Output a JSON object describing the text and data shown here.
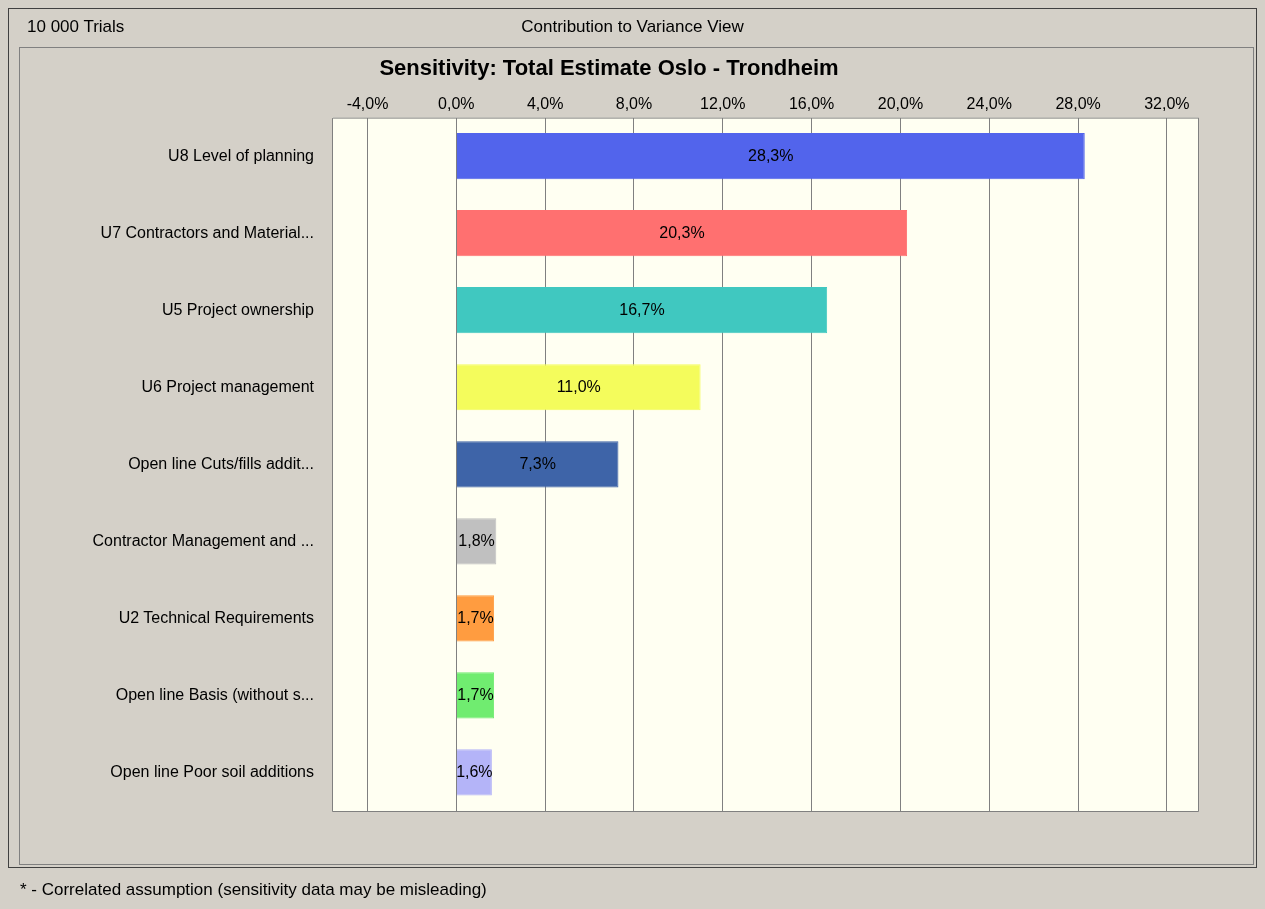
{
  "chart_data": {
    "type": "bar",
    "orientation": "horizontal",
    "title": "Sensitivity: Total Estimate Oslo - Trondheim",
    "subtitle": "Contribution to Variance View",
    "annotations": [
      "10 000 Trials",
      "* - Correlated assumption (sensitivity data may be misleading)"
    ],
    "categories": [
      "U8 Level of planning",
      "U7 Contractors and Material...",
      "U5 Project ownership",
      "U6 Project management",
      "Open line Cuts/fills addit...",
      "Contractor Management and ...",
      "U2 Technical Requirements",
      "Open line Basis (without s...",
      "Open line Poor soil additions"
    ],
    "values": [
      28.3,
      20.3,
      16.7,
      11.0,
      7.3,
      1.8,
      1.7,
      1.7,
      1.6
    ],
    "value_labels": [
      "28,3%",
      "20,3%",
      "16,7%",
      "11,0%",
      "7,3%",
      "1,8%",
      "1,7%",
      "1,7%",
      "1,6%"
    ],
    "colors": [
      "#5264ec",
      "#ff7070",
      "#40c8c0",
      "#f4fc5c",
      "#3e64a8",
      "#c0c0c0",
      "#ff9c40",
      "#70ec70",
      "#b4b4f8"
    ],
    "xlim": [
      -5.6,
      33.4
    ],
    "xticks": [
      {
        "value": -4,
        "label": "-4,0%"
      },
      {
        "value": 0,
        "label": "0,0%"
      },
      {
        "value": 4,
        "label": "4,0%"
      },
      {
        "value": 8,
        "label": "8,0%"
      },
      {
        "value": 12,
        "label": "12,0%"
      },
      {
        "value": 16,
        "label": "16,0%"
      },
      {
        "value": 20,
        "label": "20,0%"
      },
      {
        "value": 24,
        "label": "24,0%"
      },
      {
        "value": 28,
        "label": "28,0%"
      },
      {
        "value": 32,
        "label": "32,0%"
      }
    ],
    "grid": "x"
  }
}
